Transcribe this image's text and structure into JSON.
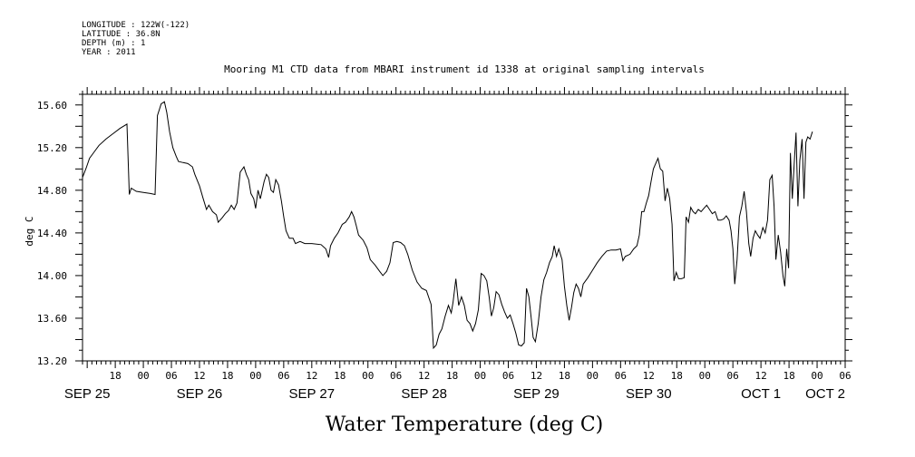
{
  "header": {
    "longitude": "LONGITUDE : 122W(-122)",
    "latitude": "LATITUDE : 36.8N",
    "depth": "DEPTH (m) : 1",
    "year": "YEAR : 2011"
  },
  "chart_data": {
    "type": "line",
    "title": "Mooring M1 CTD data from MBARI instrument id 1338 at original sampling intervals",
    "xlabel": "Water Temperature (deg C)",
    "ylabel": "deg C",
    "ylim": [
      13.2,
      15.7
    ],
    "xlim": [
      -13,
      150
    ],
    "y_ticks": [
      13.2,
      13.6,
      14.0,
      14.4,
      14.8,
      15.2,
      15.6
    ],
    "y_tick_labels": [
      "13.20",
      "13.60",
      "14.00",
      "14.40",
      "14.80",
      "15.20",
      "15.60"
    ],
    "x_hour_ticks": [
      {
        "h": -6,
        "label": "18"
      },
      {
        "h": 0,
        "label": "00"
      },
      {
        "h": 6,
        "label": "06"
      },
      {
        "h": 12,
        "label": "12"
      },
      {
        "h": 18,
        "label": "18"
      },
      {
        "h": 24,
        "label": "00"
      },
      {
        "h": 30,
        "label": "06"
      },
      {
        "h": 36,
        "label": "12"
      },
      {
        "h": 42,
        "label": "18"
      },
      {
        "h": 48,
        "label": "00"
      },
      {
        "h": 54,
        "label": "06"
      },
      {
        "h": 60,
        "label": "12"
      },
      {
        "h": 66,
        "label": "18"
      },
      {
        "h": 72,
        "label": "00"
      },
      {
        "h": 78,
        "label": "06"
      },
      {
        "h": 84,
        "label": "12"
      },
      {
        "h": 90,
        "label": "18"
      },
      {
        "h": 96,
        "label": "00"
      },
      {
        "h": 102,
        "label": "06"
      },
      {
        "h": 108,
        "label": "12"
      },
      {
        "h": 114,
        "label": "18"
      },
      {
        "h": 120,
        "label": "00"
      },
      {
        "h": 126,
        "label": "06"
      },
      {
        "h": 132,
        "label": "12"
      },
      {
        "h": 138,
        "label": "18"
      },
      {
        "h": 144,
        "label": "00"
      },
      {
        "h": 150,
        "label": "06"
      }
    ],
    "x_date_labels": [
      {
        "h": -12,
        "label": "SEP 25"
      },
      {
        "h": 12,
        "label": "SEP 26"
      },
      {
        "h": 36,
        "label": "SEP 27"
      },
      {
        "h": 60,
        "label": "SEP 28"
      },
      {
        "h": 84,
        "label": "SEP 29"
      },
      {
        "h": 108,
        "label": "SEP 30"
      },
      {
        "h": 132,
        "label": "OCT  1"
      },
      {
        "h": 156,
        "label": "OCT  2"
      }
    ],
    "grid": false,
    "series": [
      {
        "points": [
          [
            -13,
            14.92
          ],
          [
            -12.2,
            15.01
          ],
          [
            -11.5,
            15.1
          ],
          [
            -10.5,
            15.16
          ],
          [
            -9.5,
            15.22
          ],
          [
            -8,
            15.28
          ],
          [
            -6.5,
            15.33
          ],
          [
            -5,
            15.38
          ],
          [
            -3.5,
            15.42
          ],
          [
            -3,
            14.76
          ],
          [
            -2.6,
            14.82
          ],
          [
            -1.5,
            14.79
          ],
          [
            0,
            14.78
          ],
          [
            1.5,
            14.77
          ],
          [
            2.5,
            14.76
          ],
          [
            3,
            15.5
          ],
          [
            3.8,
            15.61
          ],
          [
            4.5,
            15.63
          ],
          [
            5,
            15.53
          ],
          [
            5.6,
            15.35
          ],
          [
            6.3,
            15.2
          ],
          [
            7,
            15.12
          ],
          [
            7.5,
            15.07
          ],
          [
            8.5,
            15.06
          ],
          [
            9.5,
            15.05
          ],
          [
            10.5,
            15.02
          ],
          [
            11,
            14.95
          ],
          [
            12,
            14.84
          ],
          [
            12.8,
            14.72
          ],
          [
            13.5,
            14.62
          ],
          [
            14,
            14.66
          ],
          [
            14.8,
            14.6
          ],
          [
            15.6,
            14.57
          ],
          [
            16,
            14.5
          ],
          [
            16.8,
            14.54
          ],
          [
            17.5,
            14.58
          ],
          [
            18.2,
            14.61
          ],
          [
            18.8,
            14.66
          ],
          [
            19.4,
            14.62
          ],
          [
            20,
            14.68
          ],
          [
            20.7,
            14.97
          ],
          [
            21.5,
            15.02
          ],
          [
            22,
            14.95
          ],
          [
            22.5,
            14.9
          ],
          [
            23,
            14.77
          ],
          [
            23.6,
            14.72
          ],
          [
            24,
            14.63
          ],
          [
            24.5,
            14.8
          ],
          [
            25,
            14.72
          ],
          [
            25.8,
            14.88
          ],
          [
            26.3,
            14.95
          ],
          [
            26.8,
            14.92
          ],
          [
            27.3,
            14.8
          ],
          [
            27.8,
            14.78
          ],
          [
            28.3,
            14.9
          ],
          [
            28.9,
            14.85
          ],
          [
            29.5,
            14.7
          ],
          [
            30,
            14.55
          ],
          [
            30.5,
            14.42
          ],
          [
            31.2,
            14.35
          ],
          [
            32,
            14.35
          ],
          [
            32.5,
            14.3
          ],
          [
            33.5,
            14.32
          ],
          [
            34.5,
            14.3
          ],
          [
            36,
            14.3
          ],
          [
            38,
            14.29
          ],
          [
            39,
            14.25
          ],
          [
            39.6,
            14.17
          ],
          [
            40,
            14.28
          ],
          [
            40.8,
            14.35
          ],
          [
            41.6,
            14.4
          ],
          [
            42.5,
            14.48
          ],
          [
            43.2,
            14.5
          ],
          [
            44,
            14.55
          ],
          [
            44.5,
            14.6
          ],
          [
            45,
            14.55
          ],
          [
            45.5,
            14.47
          ],
          [
            46,
            14.38
          ],
          [
            47,
            14.33
          ],
          [
            47.8,
            14.26
          ],
          [
            48.5,
            14.15
          ],
          [
            49.5,
            14.1
          ],
          [
            50.5,
            14.04
          ],
          [
            51.2,
            14.0
          ],
          [
            52,
            14.04
          ],
          [
            52.7,
            14.12
          ],
          [
            53.4,
            14.31
          ],
          [
            54.2,
            14.32
          ],
          [
            55,
            14.31
          ],
          [
            55.8,
            14.28
          ],
          [
            56.5,
            14.2
          ],
          [
            57.5,
            14.05
          ],
          [
            58.5,
            13.94
          ],
          [
            59.5,
            13.88
          ],
          [
            60.5,
            13.86
          ],
          [
            61.5,
            13.73
          ],
          [
            62,
            13.32
          ],
          [
            62.6,
            13.35
          ],
          [
            63.2,
            13.45
          ],
          [
            63.8,
            13.5
          ],
          [
            64.5,
            13.62
          ],
          [
            65.2,
            13.72
          ],
          [
            65.8,
            13.65
          ],
          [
            66.2,
            13.75
          ],
          [
            66.8,
            13.97
          ],
          [
            67.4,
            13.72
          ],
          [
            68,
            13.8
          ],
          [
            68.6,
            13.72
          ],
          [
            69.2,
            13.58
          ],
          [
            69.8,
            13.55
          ],
          [
            70.4,
            13.48
          ],
          [
            71,
            13.55
          ],
          [
            71.6,
            13.68
          ],
          [
            72.2,
            14.02
          ],
          [
            72.8,
            14.0
          ],
          [
            73.4,
            13.95
          ],
          [
            73.9,
            13.8
          ],
          [
            74.4,
            13.62
          ],
          [
            74.9,
            13.7
          ],
          [
            75.4,
            13.85
          ],
          [
            76,
            13.82
          ],
          [
            76.6,
            13.73
          ],
          [
            77.2,
            13.66
          ],
          [
            77.8,
            13.6
          ],
          [
            78.4,
            13.63
          ],
          [
            79,
            13.55
          ],
          [
            79.6,
            13.46
          ],
          [
            80.2,
            13.35
          ],
          [
            80.8,
            13.34
          ],
          [
            81.4,
            13.37
          ],
          [
            81.9,
            13.88
          ],
          [
            82.4,
            13.8
          ],
          [
            82.9,
            13.6
          ],
          [
            83.3,
            13.42
          ],
          [
            83.8,
            13.38
          ],
          [
            84.4,
            13.55
          ],
          [
            85,
            13.8
          ],
          [
            85.6,
            13.96
          ],
          [
            86.2,
            14.03
          ],
          [
            86.8,
            14.12
          ],
          [
            87.4,
            14.18
          ],
          [
            87.8,
            14.28
          ],
          [
            88.3,
            14.18
          ],
          [
            88.8,
            14.25
          ],
          [
            89.5,
            14.15
          ],
          [
            90,
            13.9
          ],
          [
            90.5,
            13.72
          ],
          [
            91,
            13.58
          ],
          [
            91.5,
            13.7
          ],
          [
            92,
            13.84
          ],
          [
            92.5,
            13.92
          ],
          [
            93,
            13.88
          ],
          [
            93.5,
            13.8
          ],
          [
            94,
            13.92
          ],
          [
            95,
            13.98
          ],
          [
            96,
            14.05
          ],
          [
            97,
            14.12
          ],
          [
            98,
            14.18
          ],
          [
            99,
            14.23
          ],
          [
            100,
            14.24
          ],
          [
            101,
            14.24
          ],
          [
            102,
            14.25
          ],
          [
            102.5,
            14.14
          ],
          [
            103,
            14.18
          ],
          [
            104,
            14.2
          ],
          [
            104.8,
            14.25
          ],
          [
            105.5,
            14.28
          ],
          [
            106,
            14.38
          ],
          [
            106.5,
            14.6
          ],
          [
            107,
            14.6
          ],
          [
            107.5,
            14.68
          ],
          [
            108,
            14.75
          ],
          [
            108.5,
            14.88
          ],
          [
            109,
            15.0
          ],
          [
            109.5,
            15.05
          ],
          [
            110,
            15.1
          ],
          [
            110.5,
            15.0
          ],
          [
            111,
            14.98
          ],
          [
            111.5,
            14.7
          ],
          [
            112,
            14.82
          ],
          [
            112.5,
            14.72
          ],
          [
            113,
            14.48
          ],
          [
            113.4,
            13.95
          ],
          [
            113.9,
            14.03
          ],
          [
            114.4,
            13.97
          ],
          [
            115,
            13.97
          ],
          [
            115.6,
            13.98
          ],
          [
            116,
            14.55
          ],
          [
            116.5,
            14.5
          ],
          [
            117,
            14.64
          ],
          [
            117.5,
            14.6
          ],
          [
            118,
            14.58
          ],
          [
            118.6,
            14.62
          ],
          [
            119.2,
            14.6
          ],
          [
            119.8,
            14.63
          ],
          [
            120.4,
            14.66
          ],
          [
            121,
            14.62
          ],
          [
            121.6,
            14.58
          ],
          [
            122.2,
            14.6
          ],
          [
            122.8,
            14.52
          ],
          [
            123.4,
            14.52
          ],
          [
            124,
            14.53
          ],
          [
            124.6,
            14.56
          ],
          [
            125.2,
            14.52
          ],
          [
            125.6,
            14.42
          ],
          [
            126,
            14.25
          ],
          [
            126.4,
            13.92
          ],
          [
            126.9,
            14.15
          ],
          [
            127.4,
            14.55
          ],
          [
            127.9,
            14.65
          ],
          [
            128.4,
            14.79
          ],
          [
            128.9,
            14.6
          ],
          [
            129.4,
            14.3
          ],
          [
            129.8,
            14.18
          ],
          [
            130.3,
            14.35
          ],
          [
            130.8,
            14.42
          ],
          [
            131.3,
            14.38
          ],
          [
            131.8,
            14.35
          ],
          [
            132.4,
            14.45
          ],
          [
            132.9,
            14.4
          ],
          [
            133.4,
            14.52
          ],
          [
            133.9,
            14.9
          ],
          [
            134.4,
            14.94
          ],
          [
            134.8,
            14.65
          ],
          [
            135.2,
            14.15
          ],
          [
            135.7,
            14.38
          ],
          [
            136.2,
            14.22
          ],
          [
            136.7,
            14.0
          ],
          [
            137.1,
            13.9
          ],
          [
            137.5,
            14.25
          ],
          [
            137.9,
            14.07
          ],
          [
            138.3,
            15.15
          ],
          [
            138.7,
            14.72
          ],
          [
            139.1,
            15.05
          ],
          [
            139.5,
            15.34
          ],
          [
            139.9,
            14.65
          ],
          [
            140.3,
            15.08
          ],
          [
            140.8,
            15.28
          ],
          [
            141.2,
            14.72
          ],
          [
            141.6,
            15.25
          ],
          [
            142,
            15.3
          ],
          [
            142.5,
            15.28
          ],
          [
            143,
            15.35
          ]
        ]
      }
    ]
  }
}
